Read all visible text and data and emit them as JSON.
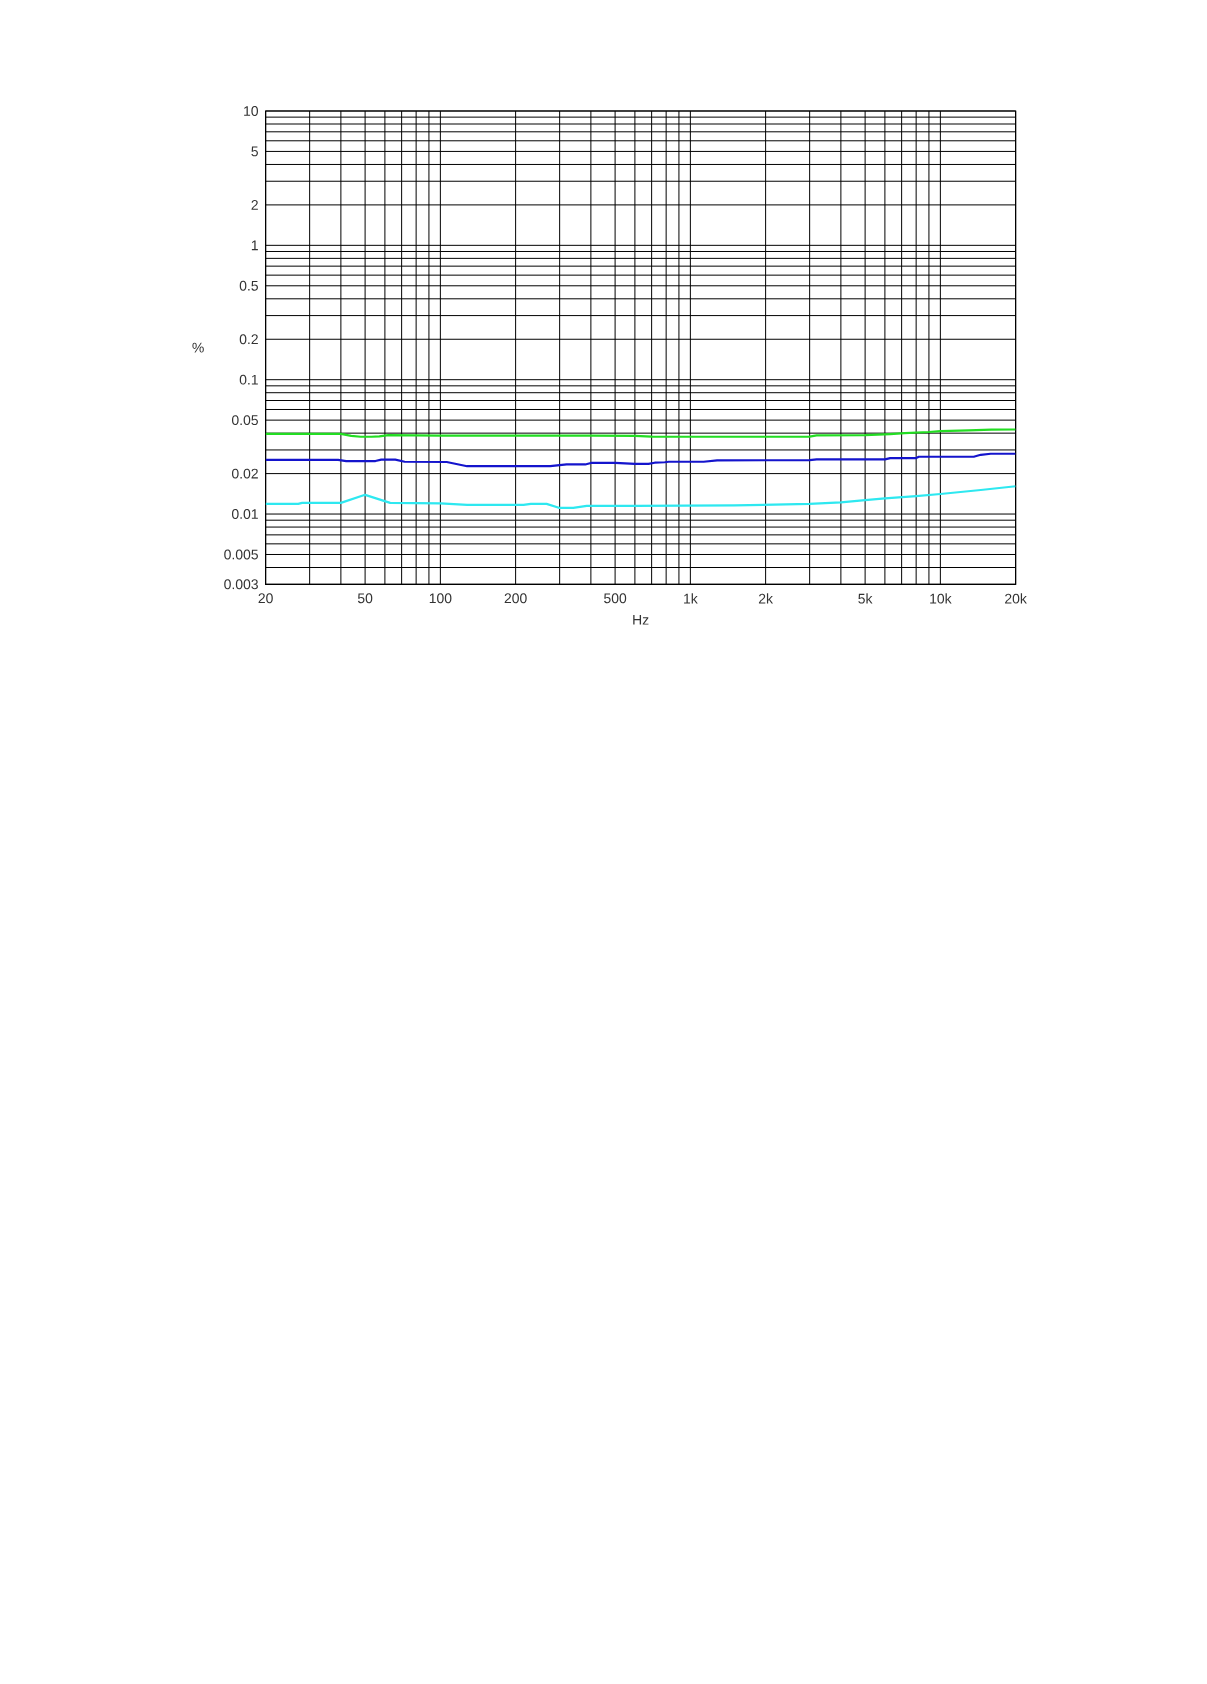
{
  "chart_data": {
    "type": "line",
    "xlabel": "Hz",
    "ylabel": "%",
    "log": "xy",
    "grid": true,
    "xlim": [
      20,
      20000
    ],
    "ylim": [
      0.003,
      10
    ],
    "xticks": [
      20,
      {
        "value": 30,
        "label": null
      },
      {
        "value": 40,
        "label": null
      },
      50,
      {
        "value": 60,
        "label": null
      },
      {
        "value": 70,
        "label": null
      },
      {
        "value": 80,
        "label": null
      },
      {
        "value": 90,
        "label": null
      },
      100,
      200,
      {
        "value": 300,
        "label": null
      },
      {
        "value": 400,
        "label": null
      },
      500,
      {
        "value": 600,
        "label": null
      },
      {
        "value": 700,
        "label": null
      },
      {
        "value": 800,
        "label": null
      },
      {
        "value": 900,
        "label": null
      },
      {
        "value": 1000,
        "label": "1k"
      },
      {
        "value": 2000,
        "label": "2k"
      },
      {
        "value": 3000,
        "label": null
      },
      {
        "value": 4000,
        "label": null
      },
      {
        "value": 5000,
        "label": "5k"
      },
      {
        "value": 6000,
        "label": null
      },
      {
        "value": 7000,
        "label": null
      },
      {
        "value": 8000,
        "label": null
      },
      {
        "value": 9000,
        "label": null
      },
      {
        "value": 10000,
        "label": "10k"
      },
      {
        "value": 20000,
        "label": "20k"
      }
    ],
    "yticks": [
      0.003,
      {
        "value": 0.004,
        "label": null
      },
      0.005,
      {
        "value": 0.006,
        "label": null
      },
      {
        "value": 0.007,
        "label": null
      },
      {
        "value": 0.008,
        "label": null
      },
      {
        "value": 0.009,
        "label": null
      },
      0.01,
      0.02,
      {
        "value": 0.03,
        "label": null
      },
      {
        "value": 0.04,
        "label": null
      },
      0.05,
      {
        "value": 0.06,
        "label": null
      },
      {
        "value": 0.07,
        "label": null
      },
      {
        "value": 0.08,
        "label": null
      },
      {
        "value": 0.09,
        "label": null
      },
      0.1,
      0.2,
      {
        "value": 0.3,
        "label": null
      },
      {
        "value": 0.4,
        "label": null
      },
      0.5,
      {
        "value": 0.6,
        "label": null
      },
      {
        "value": 0.7,
        "label": null
      },
      {
        "value": 0.8,
        "label": null
      },
      {
        "value": 0.9,
        "label": null
      },
      1,
      2,
      {
        "value": 3,
        "label": null
      },
      {
        "value": 4,
        "label": null
      },
      5,
      {
        "value": 6,
        "label": null
      },
      {
        "value": 7,
        "label": null
      },
      {
        "value": 8,
        "label": null
      },
      {
        "value": 9,
        "label": null
      },
      10
    ],
    "series": [
      {
        "color": "#22dd22",
        "x": [
          20,
          40,
          44,
          48,
          53,
          57,
          62,
          100,
          200,
          400,
          600,
          700,
          1000,
          2000,
          3000,
          3200,
          5000,
          6300,
          7200,
          9000,
          10000,
          13000,
          16000,
          20000
        ],
        "values": [
          0.0395,
          0.0395,
          0.0382,
          0.0376,
          0.0376,
          0.0378,
          0.0387,
          0.0384,
          0.0383,
          0.0383,
          0.0382,
          0.0377,
          0.0376,
          0.0376,
          0.0377,
          0.0385,
          0.0387,
          0.0394,
          0.04,
          0.0408,
          0.0414,
          0.042,
          0.0425,
          0.0426
        ]
      },
      {
        "color": "#1414cc",
        "x": [
          20,
          39,
          42,
          55,
          58,
          66,
          72,
          106,
          128,
          275,
          320,
          380,
          400,
          500,
          600,
          680,
          720,
          790,
          820,
          1130,
          1280,
          3000,
          3200,
          6000,
          6300,
          8000,
          8200,
          13600,
          14500,
          15900,
          20000
        ],
        "values": [
          0.0253,
          0.0253,
          0.0248,
          0.0248,
          0.0254,
          0.0254,
          0.0245,
          0.0244,
          0.0227,
          0.0227,
          0.0234,
          0.0234,
          0.024,
          0.024,
          0.0236,
          0.0236,
          0.0241,
          0.0243,
          0.0245,
          0.0245,
          0.0251,
          0.0252,
          0.0255,
          0.0255,
          0.0261,
          0.0261,
          0.0267,
          0.0267,
          0.0276,
          0.0281,
          0.0281
        ]
      },
      {
        "color": "#2ee8f0",
        "x": [
          20,
          27,
          28,
          40,
          50,
          63,
          100,
          128,
          215,
          230,
          266,
          300,
          340,
          385,
          600,
          1500,
          3000,
          4000,
          5000,
          6000,
          8000,
          10000,
          14500,
          20000
        ],
        "values": [
          0.0119,
          0.0119,
          0.0121,
          0.0121,
          0.0139,
          0.0121,
          0.012,
          0.0117,
          0.0117,
          0.0119,
          0.0119,
          0.0111,
          0.0111,
          0.0115,
          0.0115,
          0.0116,
          0.0119,
          0.0122,
          0.0127,
          0.0131,
          0.0136,
          0.0141,
          0.0151,
          0.0161
        ]
      }
    ]
  }
}
